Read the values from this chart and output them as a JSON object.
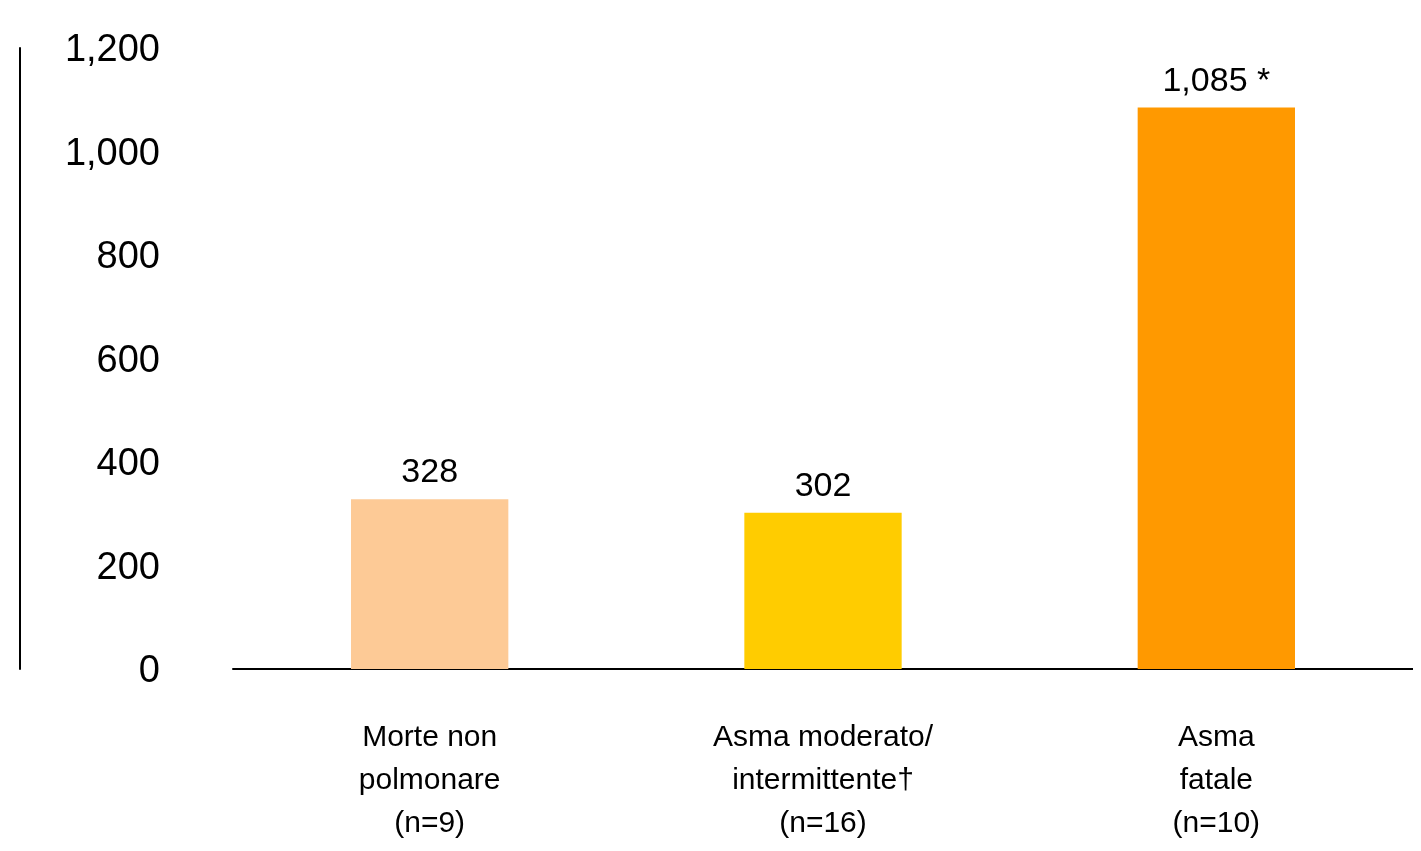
{
  "chart_data": {
    "type": "bar",
    "categories": [
      "Morte non\npolmonare\n(n=9)",
      "Asma moderato/\nintermittente†\n(n=16)",
      "Asma\nfatale\n(n=10)"
    ],
    "values": [
      328,
      302,
      1085
    ],
    "value_labels": [
      "328",
      "302",
      "1,085 *"
    ],
    "colors": [
      "#fdca96",
      "#ffcc00",
      "#ff9900"
    ],
    "ylim": [
      0,
      1200
    ],
    "yticks": [
      0,
      200,
      400,
      600,
      800,
      {
        "value": 1000,
        "label": "1,000"
      },
      {
        "value": 1200,
        "label": "1,200"
      }
    ],
    "grid": false
  }
}
